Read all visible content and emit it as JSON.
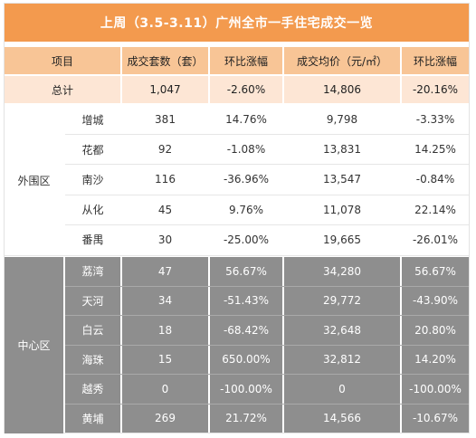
{
  "title": "上周（3.5-3.11）广州全市一手住宅成交一览",
  "headers": [
    "项目",
    "成交套数（套）",
    "环比涨幅",
    "成交均价（元/㎡）",
    "环比涨幅"
  ],
  "total": {
    "label": "总计",
    "count": "1,047",
    "count_change": "-2.60%",
    "price": "14,806",
    "price_change": "-20.16%"
  },
  "groups": [
    {
      "name": "外围区",
      "rows": [
        {
          "district": "增城",
          "count": "381",
          "count_change": "14.76%",
          "price": "9,798",
          "price_change": "-3.33%"
        },
        {
          "district": "花都",
          "count": "92",
          "count_change": "-1.08%",
          "price": "13,831",
          "price_change": "14.25%"
        },
        {
          "district": "南沙",
          "count": "116",
          "count_change": "-36.96%",
          "price": "13,547",
          "price_change": "-0.84%"
        },
        {
          "district": "从化",
          "count": "45",
          "count_change": "9.76%",
          "price": "11,078",
          "price_change": "22.14%"
        },
        {
          "district": "番禺",
          "count": "30",
          "count_change": "-25.00%",
          "price": "19,665",
          "price_change": "-26.01%"
        }
      ]
    },
    {
      "name": "中心区",
      "rows": [
        {
          "district": "荔湾",
          "count": "47",
          "count_change": "56.67%",
          "price": "34,280",
          "price_change": "56.67%"
        },
        {
          "district": "天河",
          "count": "34",
          "count_change": "-51.43%",
          "price": "29,772",
          "price_change": "-43.90%"
        },
        {
          "district": "白云",
          "count": "18",
          "count_change": "-68.42%",
          "price": "32,648",
          "price_change": "20.80%"
        },
        {
          "district": "海珠",
          "count": "15",
          "count_change": "650.00%",
          "price": "32,812",
          "price_change": "14.20%"
        },
        {
          "district": "越秀",
          "count": "0",
          "count_change": "-100.00%",
          "price": "0",
          "price_change": "-100.00%"
        },
        {
          "district": "黄埔",
          "count": "269",
          "count_change": "21.72%",
          "price": "14,566",
          "price_change": "-10.67%"
        }
      ]
    }
  ]
}
